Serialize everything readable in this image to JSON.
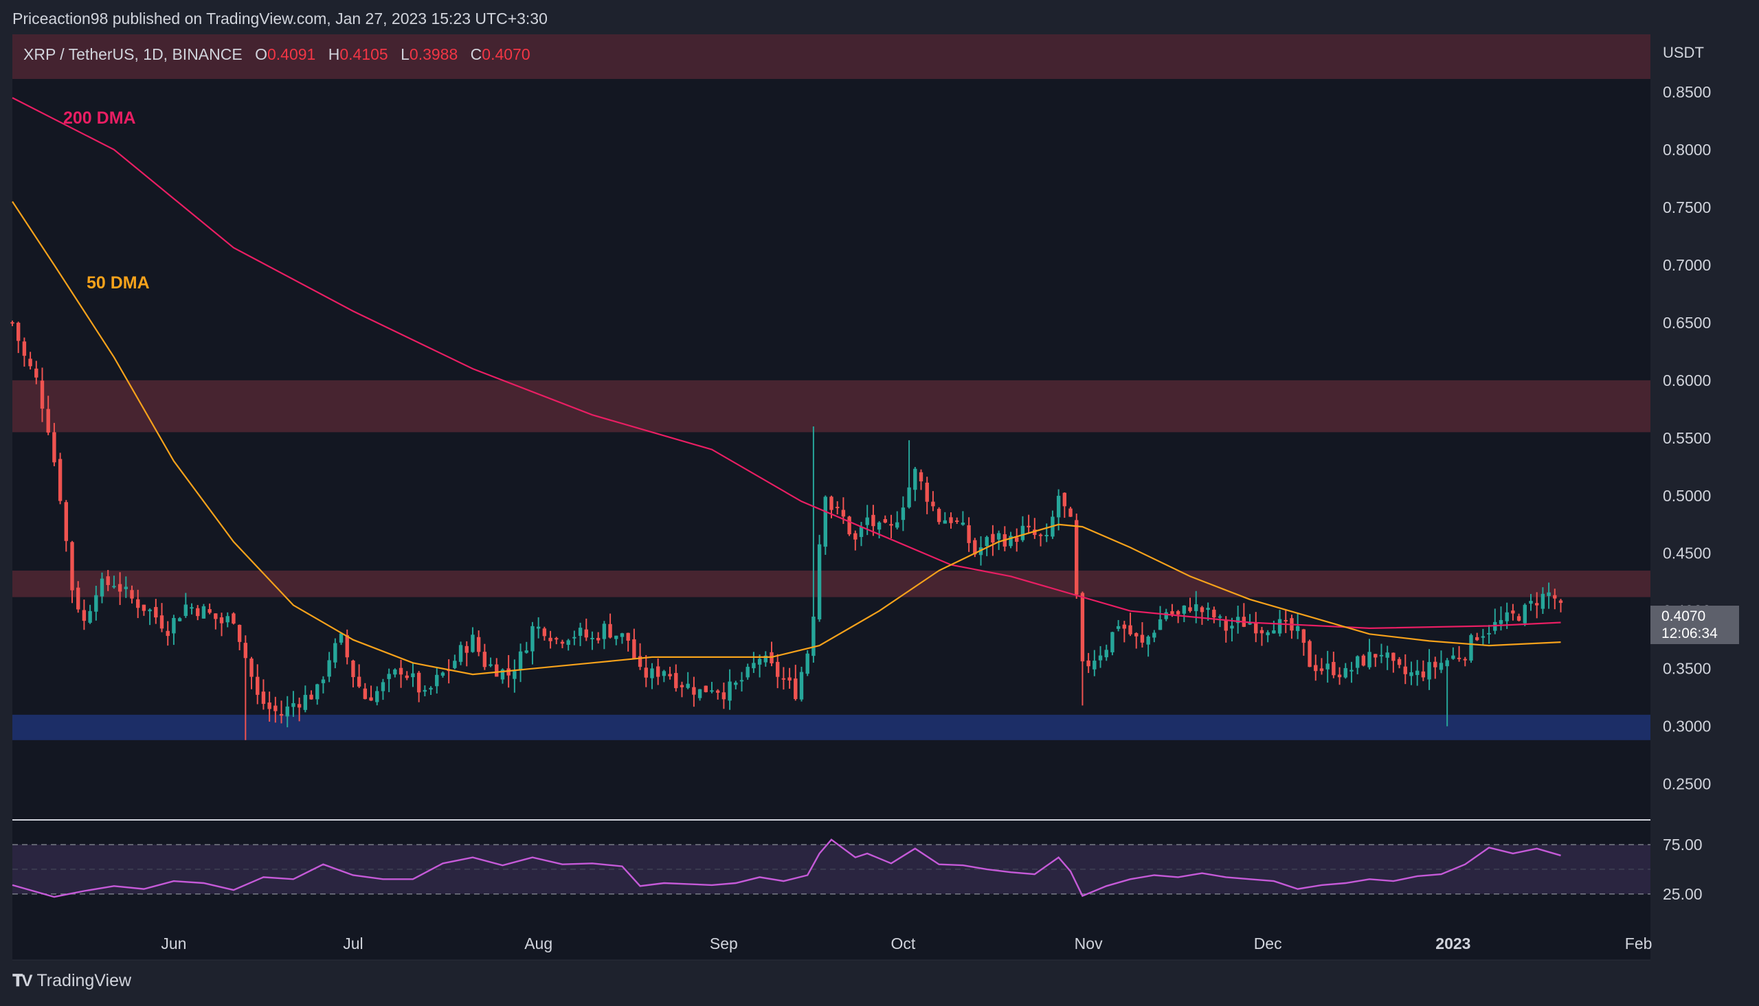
{
  "header": {
    "published_by": "Priceaction98 published on TradingView.com, Jan 27, 2023 15:23 UTC+3:30"
  },
  "legend": {
    "symbol": "XRP / TetherUS, 1D, BINANCE",
    "o_label": "O",
    "o_value": "0.4091",
    "h_label": "H",
    "h_value": "0.4105",
    "l_label": "L",
    "l_value": "0.3988",
    "c_label": "C",
    "c_value": "0.4070"
  },
  "price_tag": {
    "price": "0.4070",
    "countdown": "12:06:34"
  },
  "ma_labels": {
    "ma200": "200 DMA",
    "ma50": "50 DMA"
  },
  "footer": {
    "brand": "TradingView"
  },
  "colors": {
    "background": "#131722",
    "up": "#26a69a",
    "down": "#ef5350",
    "ma200": "#e91e63",
    "ma50": "#f7a21b",
    "resistance_zone": "#4a2532",
    "support_zone": "#1c2f6b",
    "rsi": "#c55ad8"
  },
  "chart_data": {
    "type": "candlestick",
    "currency_label": "USDT",
    "y_ticks": [
      "0.8500",
      "0.8000",
      "0.7500",
      "0.7000",
      "0.6500",
      "0.6000",
      "0.5500",
      "0.5000",
      "0.4500",
      "0.4000",
      "0.3500",
      "0.3000",
      "0.2500"
    ],
    "y_tick_values": [
      0.85,
      0.8,
      0.75,
      0.7,
      0.65,
      0.6,
      0.55,
      0.5,
      0.45,
      0.4,
      0.35,
      0.3,
      0.25
    ],
    "ylim": [
      0.22,
      0.9
    ],
    "x_ticks": [
      "Jun",
      "Jul",
      "Aug",
      "Sep",
      "Oct",
      "Nov",
      "Dec",
      "2023",
      "Feb"
    ],
    "x_tick_days": [
      20,
      50,
      81,
      112,
      142,
      173,
      203,
      234,
      265
    ],
    "x_range_days": [
      -7,
      267
    ],
    "bold_x_ticks": [
      "2023"
    ],
    "zones": [
      {
        "from": 0.555,
        "to": 0.6,
        "kind": "resistance"
      },
      {
        "from": 0.412,
        "to": 0.435,
        "kind": "resistance"
      },
      {
        "from": 0.288,
        "to": 0.31,
        "kind": "support"
      }
    ],
    "price_anchors": [
      [
        -7,
        0.65
      ],
      [
        -5,
        0.62
      ],
      [
        -3,
        0.6
      ],
      [
        -1,
        0.56
      ],
      [
        1,
        0.5
      ],
      [
        3,
        0.42
      ],
      [
        5,
        0.39
      ],
      [
        7,
        0.42
      ],
      [
        10,
        0.425
      ],
      [
        13,
        0.41
      ],
      [
        16,
        0.4
      ],
      [
        19,
        0.385
      ],
      [
        22,
        0.405
      ],
      [
        25,
        0.4
      ],
      [
        28,
        0.39
      ],
      [
        30,
        0.395
      ],
      [
        32,
        0.36
      ],
      [
        34,
        0.325
      ],
      [
        36,
        0.315
      ],
      [
        38,
        0.31
      ],
      [
        40,
        0.32
      ],
      [
        42,
        0.325
      ],
      [
        44,
        0.33
      ],
      [
        46,
        0.36
      ],
      [
        48,
        0.375
      ],
      [
        50,
        0.345
      ],
      [
        52,
        0.325
      ],
      [
        54,
        0.33
      ],
      [
        56,
        0.34
      ],
      [
        58,
        0.35
      ],
      [
        60,
        0.34
      ],
      [
        62,
        0.325
      ],
      [
        64,
        0.34
      ],
      [
        66,
        0.35
      ],
      [
        68,
        0.365
      ],
      [
        70,
        0.375
      ],
      [
        72,
        0.355
      ],
      [
        74,
        0.35
      ],
      [
        76,
        0.345
      ],
      [
        78,
        0.36
      ],
      [
        80,
        0.385
      ],
      [
        82,
        0.385
      ],
      [
        84,
        0.375
      ],
      [
        86,
        0.38
      ],
      [
        88,
        0.38
      ],
      [
        90,
        0.375
      ],
      [
        92,
        0.385
      ],
      [
        94,
        0.38
      ],
      [
        96,
        0.375
      ],
      [
        98,
        0.345
      ],
      [
        100,
        0.345
      ],
      [
        102,
        0.35
      ],
      [
        104,
        0.34
      ],
      [
        106,
        0.335
      ],
      [
        108,
        0.33
      ],
      [
        110,
        0.335
      ],
      [
        112,
        0.33
      ],
      [
        114,
        0.335
      ],
      [
        116,
        0.345
      ],
      [
        118,
        0.36
      ],
      [
        120,
        0.35
      ],
      [
        122,
        0.34
      ],
      [
        124,
        0.33
      ],
      [
        126,
        0.365
      ],
      [
        127,
        0.4
      ],
      [
        128,
        0.46
      ],
      [
        129,
        0.505
      ],
      [
        130,
        0.49
      ],
      [
        132,
        0.48
      ],
      [
        134,
        0.46
      ],
      [
        136,
        0.48
      ],
      [
        138,
        0.47
      ],
      [
        140,
        0.47
      ],
      [
        142,
        0.495
      ],
      [
        144,
        0.52
      ],
      [
        146,
        0.5
      ],
      [
        148,
        0.48
      ],
      [
        150,
        0.48
      ],
      [
        152,
        0.47
      ],
      [
        154,
        0.45
      ],
      [
        156,
        0.46
      ],
      [
        158,
        0.465
      ],
      [
        160,
        0.46
      ],
      [
        162,
        0.47
      ],
      [
        164,
        0.465
      ],
      [
        166,
        0.46
      ],
      [
        168,
        0.5
      ],
      [
        170,
        0.475
      ],
      [
        171,
        0.41
      ],
      [
        172,
        0.35
      ],
      [
        174,
        0.36
      ],
      [
        176,
        0.37
      ],
      [
        178,
        0.39
      ],
      [
        180,
        0.38
      ],
      [
        182,
        0.37
      ],
      [
        184,
        0.385
      ],
      [
        186,
        0.4
      ],
      [
        188,
        0.395
      ],
      [
        190,
        0.405
      ],
      [
        192,
        0.4
      ],
      [
        194,
        0.395
      ],
      [
        196,
        0.385
      ],
      [
        198,
        0.39
      ],
      [
        200,
        0.39
      ],
      [
        202,
        0.385
      ],
      [
        204,
        0.39
      ],
      [
        206,
        0.385
      ],
      [
        208,
        0.38
      ],
      [
        210,
        0.355
      ],
      [
        212,
        0.35
      ],
      [
        214,
        0.35
      ],
      [
        216,
        0.345
      ],
      [
        218,
        0.355
      ],
      [
        220,
        0.36
      ],
      [
        222,
        0.365
      ],
      [
        224,
        0.35
      ],
      [
        226,
        0.345
      ],
      [
        228,
        0.345
      ],
      [
        230,
        0.35
      ],
      [
        232,
        0.355
      ],
      [
        234,
        0.36
      ],
      [
        236,
        0.365
      ],
      [
        238,
        0.38
      ],
      [
        240,
        0.385
      ],
      [
        242,
        0.39
      ],
      [
        244,
        0.395
      ],
      [
        246,
        0.4
      ],
      [
        248,
        0.41
      ],
      [
        250,
        0.415
      ],
      [
        252,
        0.407
      ]
    ],
    "ma200_points": [
      [
        -7,
        0.845
      ],
      [
        10,
        0.8
      ],
      [
        30,
        0.715
      ],
      [
        50,
        0.66
      ],
      [
        70,
        0.61
      ],
      [
        90,
        0.57
      ],
      [
        110,
        0.54
      ],
      [
        125,
        0.495
      ],
      [
        150,
        0.44
      ],
      [
        160,
        0.43
      ],
      [
        170,
        0.415
      ],
      [
        180,
        0.4
      ],
      [
        200,
        0.39
      ],
      [
        220,
        0.385
      ],
      [
        240,
        0.387
      ],
      [
        252,
        0.39
      ]
    ],
    "ma50_points": [
      [
        -7,
        0.755
      ],
      [
        0,
        0.7
      ],
      [
        10,
        0.62
      ],
      [
        20,
        0.53
      ],
      [
        30,
        0.46
      ],
      [
        40,
        0.405
      ],
      [
        50,
        0.375
      ],
      [
        60,
        0.355
      ],
      [
        70,
        0.345
      ],
      [
        80,
        0.35
      ],
      [
        90,
        0.355
      ],
      [
        100,
        0.36
      ],
      [
        110,
        0.36
      ],
      [
        120,
        0.36
      ],
      [
        128,
        0.37
      ],
      [
        138,
        0.4
      ],
      [
        148,
        0.435
      ],
      [
        158,
        0.46
      ],
      [
        168,
        0.475
      ],
      [
        172,
        0.473
      ],
      [
        180,
        0.455
      ],
      [
        190,
        0.43
      ],
      [
        200,
        0.41
      ],
      [
        210,
        0.395
      ],
      [
        220,
        0.38
      ],
      [
        230,
        0.374
      ],
      [
        240,
        0.37
      ],
      [
        252,
        0.373
      ]
    ],
    "ohlc_last": {
      "o": 0.4091,
      "h": 0.4105,
      "l": 0.3988,
      "c": 0.407
    },
    "rsi": {
      "levels": [
        "75.00",
        "25.00"
      ],
      "level_values": [
        75,
        25
      ],
      "band": [
        30,
        70
      ],
      "points": [
        [
          -7,
          34
        ],
        [
          0,
          22
        ],
        [
          5,
          28
        ],
        [
          10,
          33
        ],
        [
          15,
          30
        ],
        [
          20,
          38
        ],
        [
          25,
          36
        ],
        [
          30,
          29
        ],
        [
          35,
          42
        ],
        [
          40,
          40
        ],
        [
          45,
          55
        ],
        [
          50,
          44
        ],
        [
          55,
          40
        ],
        [
          60,
          40
        ],
        [
          65,
          56
        ],
        [
          70,
          62
        ],
        [
          75,
          54
        ],
        [
          80,
          62
        ],
        [
          85,
          55
        ],
        [
          90,
          56
        ],
        [
          95,
          53
        ],
        [
          98,
          33
        ],
        [
          102,
          36
        ],
        [
          106,
          35
        ],
        [
          110,
          34
        ],
        [
          114,
          36
        ],
        [
          118,
          42
        ],
        [
          122,
          38
        ],
        [
          126,
          44
        ],
        [
          128,
          66
        ],
        [
          130,
          80
        ],
        [
          134,
          62
        ],
        [
          136,
          66
        ],
        [
          140,
          56
        ],
        [
          144,
          71
        ],
        [
          148,
          55
        ],
        [
          152,
          54
        ],
        [
          156,
          50
        ],
        [
          160,
          47
        ],
        [
          164,
          45
        ],
        [
          168,
          62
        ],
        [
          170,
          48
        ],
        [
          172,
          23
        ],
        [
          176,
          33
        ],
        [
          180,
          40
        ],
        [
          184,
          44
        ],
        [
          188,
          42
        ],
        [
          192,
          46
        ],
        [
          196,
          42
        ],
        [
          200,
          40
        ],
        [
          204,
          38
        ],
        [
          208,
          30
        ],
        [
          212,
          34
        ],
        [
          216,
          36
        ],
        [
          220,
          40
        ],
        [
          224,
          38
        ],
        [
          228,
          43
        ],
        [
          232,
          45
        ],
        [
          236,
          55
        ],
        [
          240,
          72
        ],
        [
          244,
          66
        ],
        [
          248,
          71
        ],
        [
          252,
          64
        ]
      ]
    }
  }
}
